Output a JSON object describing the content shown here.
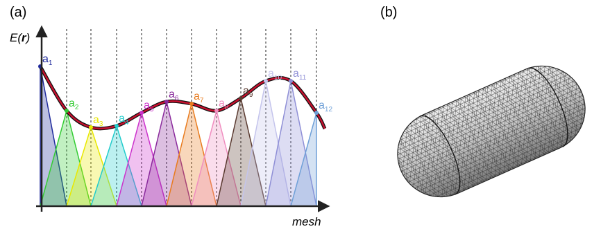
{
  "panel_a": {
    "label": "(a)",
    "y_axis_label": {
      "symbol": "E(",
      "bold": "r",
      "close": ")"
    },
    "x_axis_label": "mesh",
    "nodes": [
      {
        "symbol": "a",
        "subscript": "1",
        "color": "#1f2a9c"
      },
      {
        "symbol": "a",
        "subscript": "2",
        "color": "#33cc33"
      },
      {
        "symbol": "a",
        "subscript": "3",
        "color": "#e8e800"
      },
      {
        "symbol": "a",
        "subscript": "4",
        "color": "#22cccc"
      },
      {
        "symbol": "a",
        "subscript": "5",
        "color": "#cc33cc"
      },
      {
        "symbol": "a",
        "subscript": "6",
        "color": "#8a2a9c"
      },
      {
        "symbol": "a",
        "subscript": "7",
        "color": "#e87b1e"
      },
      {
        "symbol": "a",
        "subscript": "8",
        "color": "#f08ec0"
      },
      {
        "symbol": "a",
        "subscript": "9",
        "color": "#5a3a30"
      },
      {
        "symbol": "a",
        "subscript": "10",
        "color": "#c4c4ec"
      },
      {
        "symbol": "a",
        "subscript": "11",
        "color": "#8f8fd6"
      },
      {
        "symbol": "a",
        "subscript": "12",
        "color": "#6fa0d8"
      }
    ]
  },
  "panel_b": {
    "label": "(b)"
  }
}
